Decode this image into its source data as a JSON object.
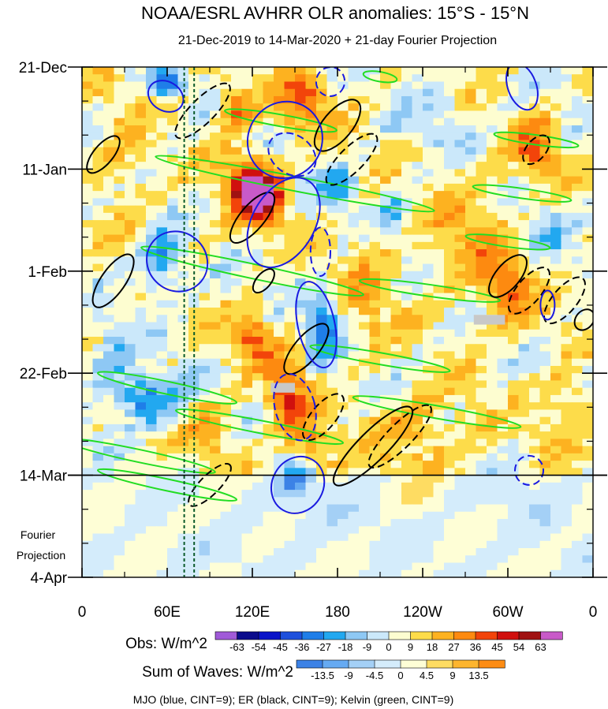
{
  "chart_data": {
    "type": "heatmap",
    "title": "NOAA/ESRL AVHRR OLR anomalies: 15°S - 15°N",
    "subtitle": "21-Dec-2019 to 14-Mar-2020 + 21-day Fourier Projection",
    "x_ticks": [
      {
        "lon": 0,
        "label": "0"
      },
      {
        "lon": 60,
        "label": "60E"
      },
      {
        "lon": 120,
        "label": "120E"
      },
      {
        "lon": 180,
        "label": "180"
      },
      {
        "lon": 240,
        "label": "120W"
      },
      {
        "lon": 300,
        "label": "60W"
      },
      {
        "lon": 360,
        "label": "0"
      }
    ],
    "xlim": [
      0,
      360
    ],
    "y_ticks": [
      {
        "day": 0,
        "label": "21-Dec"
      },
      {
        "day": 21,
        "label": "11-Jan"
      },
      {
        "day": 42,
        "label": "1-Feb"
      },
      {
        "day": 63,
        "label": "22-Feb"
      },
      {
        "day": 84,
        "label": "14-Mar"
      },
      {
        "day": 105,
        "label": "4-Apr"
      }
    ],
    "ylim_days": [
      0,
      105
    ],
    "projection_label": [
      "Fourier",
      "Projection"
    ],
    "projection_start_day": 84,
    "reference_lines_lon": [
      72,
      79
    ],
    "obs_colorbar": {
      "label": "Obs: W/m^2",
      "levels": [
        "-63",
        "-54",
        "-45",
        "-36",
        "-27",
        "-18",
        "-9",
        "0",
        "9",
        "18",
        "27",
        "36",
        "45",
        "54",
        "63"
      ],
      "colors": [
        "#a05ad8",
        "#0b0c8c",
        "#0a14c8",
        "#1e50dc",
        "#1f7ee8",
        "#22a8f0",
        "#8ec8f4",
        "#cbe8fa",
        "#fdfdd0",
        "#fddc4a",
        "#fdb220",
        "#fd8a10",
        "#f2440a",
        "#d0100e",
        "#a01212",
        "#c85ac8"
      ]
    },
    "waves_colorbar": {
      "label": "Sum of Waves: W/m^2",
      "levels": [
        "-13.5",
        "-9",
        "-4.5",
        "0",
        "4.5",
        "9",
        "13.5"
      ],
      "colors": [
        "#3c82e6",
        "#66aaf2",
        "#a4d0f6",
        "#d4ecfb",
        "#fefed6",
        "#fedc62",
        "#fdb52e",
        "#fd8c14"
      ]
    },
    "legend_note": "MJO (blue, CINT=9); ER (black, CINT=9); Kelvin (green, CINT=9)",
    "field_blobs": [
      {
        "lon": 128,
        "day": 27,
        "val": 55,
        "rlon": 14,
        "rday": 5
      },
      {
        "lon": 115,
        "day": 24,
        "val": 40,
        "rlon": 16,
        "rday": 6
      },
      {
        "lon": 108,
        "day": 8,
        "val": 30,
        "rlon": 12,
        "rday": 5
      },
      {
        "lon": 155,
        "day": 7,
        "val": 32,
        "rlon": 18,
        "rday": 6
      },
      {
        "lon": 320,
        "day": 17,
        "val": 32,
        "rlon": 16,
        "rday": 6
      },
      {
        "lon": 300,
        "day": 47,
        "val": 28,
        "rlon": 18,
        "rday": 7
      },
      {
        "lon": 145,
        "day": 68,
        "val": 40,
        "rlon": 14,
        "rday": 7
      },
      {
        "lon": 165,
        "day": 78,
        "val": 26,
        "rlon": 12,
        "rday": 5
      },
      {
        "lon": 120,
        "day": 56,
        "val": 30,
        "rlon": 16,
        "rday": 5
      },
      {
        "lon": 60,
        "day": 3,
        "val": -45,
        "rlon": 10,
        "rday": 3
      },
      {
        "lon": 55,
        "day": 40,
        "val": -35,
        "rlon": 14,
        "rday": 6
      },
      {
        "lon": 45,
        "day": 68,
        "val": -38,
        "rlon": 22,
        "rday": 5
      },
      {
        "lon": 170,
        "day": 53,
        "val": -36,
        "rlon": 12,
        "rday": 7
      },
      {
        "lon": 180,
        "day": 25,
        "val": -30,
        "rlon": 14,
        "rday": 4
      },
      {
        "lon": 150,
        "day": 85,
        "val": -40,
        "rlon": 10,
        "rday": 3
      },
      {
        "lon": 220,
        "day": 30,
        "val": -18,
        "rlon": 12,
        "rday": 5
      },
      {
        "lon": 250,
        "day": 10,
        "val": -12,
        "rlon": 22,
        "rday": 6
      },
      {
        "lon": 20,
        "day": 60,
        "val": -20,
        "rlon": 14,
        "rday": 6
      },
      {
        "lon": 270,
        "day": 35,
        "val": 18,
        "rlon": 30,
        "rday": 10
      },
      {
        "lon": 240,
        "day": 75,
        "val": 18,
        "rlon": 30,
        "rday": 8
      },
      {
        "lon": 200,
        "day": 45,
        "val": 14,
        "rlon": 20,
        "rday": 12
      },
      {
        "lon": 340,
        "day": 70,
        "val": 16,
        "rlon": 16,
        "rday": 8
      },
      {
        "lon": 30,
        "day": 20,
        "val": 14,
        "rlon": 18,
        "rday": 10
      },
      {
        "lon": 90,
        "day": 75,
        "val": 18,
        "rlon": 14,
        "rday": 6
      },
      {
        "lon": 330,
        "day": 35,
        "val": -14,
        "rlon": 14,
        "rday": 6
      },
      {
        "lon": 100,
        "day": 95,
        "val": 5,
        "rlon": 40,
        "rday": 4
      },
      {
        "lon": 150,
        "day": 92,
        "val": -10,
        "rlon": 40,
        "rday": 6
      },
      {
        "lon": 60,
        "day": 100,
        "val": -6,
        "rlon": 40,
        "rday": 4
      },
      {
        "lon": 300,
        "day": 92,
        "val": -4,
        "rlon": 40,
        "rday": 8
      },
      {
        "lon": 230,
        "day": 88,
        "val": 5,
        "rlon": 25,
        "rday": 3
      }
    ],
    "missing_patches": [
      {
        "lon0": 133,
        "lon1": 150,
        "day0": 65,
        "day1": 67
      },
      {
        "lon0": 276,
        "lon1": 298,
        "day0": 51,
        "day1": 53
      }
    ],
    "mjo_contours": [
      {
        "lon": 143,
        "day": 15,
        "rlon": 26,
        "rday": 8,
        "angle": 32,
        "dash": false
      },
      {
        "lon": 148,
        "day": 18,
        "rlon": 18,
        "rday": 4,
        "angle": 35,
        "dash": true
      },
      {
        "lon": 165,
        "day": 53,
        "rlon": 13,
        "rday": 9,
        "angle": -12,
        "dash": false
      },
      {
        "lon": 150,
        "day": 70,
        "rlon": 14,
        "rday": 7,
        "angle": -15,
        "dash": true
      },
      {
        "lon": 142,
        "day": 32,
        "rlon": 22,
        "rday": 10,
        "angle": 30,
        "dash": false
      },
      {
        "lon": 67,
        "day": 40,
        "rlon": 22,
        "rday": 6,
        "angle": 40,
        "dash": false
      },
      {
        "lon": 59,
        "day": 6,
        "rlon": 13,
        "rday": 3,
        "angle": 30,
        "dash": false
      },
      {
        "lon": 152,
        "day": 86,
        "rlon": 18,
        "rday": 6,
        "angle": 30,
        "dash": false
      },
      {
        "lon": 168,
        "day": 38,
        "rlon": 7,
        "rday": 5,
        "angle": 0,
        "dash": true
      },
      {
        "lon": 175,
        "day": 3,
        "rlon": 10,
        "rday": 3,
        "angle": 20,
        "dash": true
      },
      {
        "lon": 310,
        "day": 4,
        "rlon": 10,
        "rday": 5,
        "angle": -20,
        "dash": false
      },
      {
        "lon": 328,
        "day": 49,
        "rlon": 5,
        "rday": 3,
        "angle": 0,
        "dash": false
      },
      {
        "lon": 315,
        "day": 83,
        "rlon": 10,
        "rday": 3,
        "angle": 0,
        "dash": true
      }
    ],
    "er_contours": [
      {
        "lon": 180,
        "day": 12,
        "rlon": 22,
        "rday": 3,
        "angle": -50,
        "dash": false
      },
      {
        "lon": 85,
        "day": 9,
        "rlon": 26,
        "rday": 2.5,
        "angle": -45,
        "dash": true
      },
      {
        "lon": 190,
        "day": 19,
        "rlon": 24,
        "rday": 2.5,
        "angle": -45,
        "dash": true
      },
      {
        "lon": 15,
        "day": 18,
        "rlon": 16,
        "rday": 2,
        "angle": -50,
        "dash": false
      },
      {
        "lon": 22,
        "day": 44,
        "rlon": 22,
        "rday": 2.5,
        "angle": -55,
        "dash": false
      },
      {
        "lon": 120,
        "day": 31,
        "rlon": 22,
        "rday": 2.5,
        "angle": -50,
        "dash": false
      },
      {
        "lon": 158,
        "day": 58,
        "rlon": 22,
        "rday": 2.5,
        "angle": -50,
        "dash": false
      },
      {
        "lon": 205,
        "day": 78,
        "rlon": 38,
        "rday": 3,
        "angle": -45,
        "dash": false
      },
      {
        "lon": 224,
        "day": 76,
        "rlon": 30,
        "rday": 2.5,
        "angle": -45,
        "dash": true
      },
      {
        "lon": 170,
        "day": 72,
        "rlon": 20,
        "rday": 2.5,
        "angle": -50,
        "dash": true
      },
      {
        "lon": 90,
        "day": 86,
        "rlon": 20,
        "rday": 2,
        "angle": -45,
        "dash": true
      },
      {
        "lon": 300,
        "day": 43,
        "rlon": 18,
        "rday": 2.5,
        "angle": -50,
        "dash": false
      },
      {
        "lon": 315,
        "day": 46,
        "rlon": 20,
        "rday": 2.5,
        "angle": -50,
        "dash": true
      },
      {
        "lon": 340,
        "day": 48,
        "rlon": 20,
        "rday": 2.5,
        "angle": -50,
        "dash": true
      },
      {
        "lon": 320,
        "day": 17,
        "rlon": 12,
        "rday": 2,
        "angle": -50,
        "dash": true
      },
      {
        "lon": 354,
        "day": 52,
        "rlon": 8,
        "rday": 1.8,
        "angle": -50,
        "dash": false
      },
      {
        "lon": 128,
        "day": 44,
        "rlon": 10,
        "rday": 1.5,
        "angle": -50,
        "dash": false
      }
    ],
    "kelvin_contours": [
      {
        "lon": 210,
        "day": 2,
        "rlon": 12,
        "rday": 1,
        "angle": 10,
        "dash": false
      },
      {
        "lon": 140,
        "day": 11,
        "rlon": 40,
        "rday": 1.2,
        "angle": 10,
        "dash": false
      },
      {
        "lon": 150,
        "day": 24,
        "rlon": 100,
        "rday": 1.5,
        "angle": 11,
        "dash": false
      },
      {
        "lon": 120,
        "day": 42,
        "rlon": 80,
        "rday": 1.5,
        "angle": 12,
        "dash": false
      },
      {
        "lon": 245,
        "day": 46,
        "rlon": 50,
        "rday": 1.2,
        "angle": 8,
        "dash": false
      },
      {
        "lon": 60,
        "day": 66,
        "rlon": 50,
        "rday": 1.3,
        "angle": 12,
        "dash": false
      },
      {
        "lon": 125,
        "day": 74,
        "rlon": 60,
        "rday": 1.3,
        "angle": 11,
        "dash": false
      },
      {
        "lon": 250,
        "day": 71,
        "rlon": 60,
        "rday": 1.3,
        "angle": 10,
        "dash": false
      },
      {
        "lon": 40,
        "day": 80,
        "rlon": 55,
        "rday": 1.3,
        "angle": 12,
        "dash": false
      },
      {
        "lon": 310,
        "day": 26,
        "rlon": 35,
        "rday": 1,
        "angle": 8,
        "dash": false
      },
      {
        "lon": 300,
        "day": 36,
        "rlon": 30,
        "rday": 1,
        "angle": 8,
        "dash": false
      },
      {
        "lon": 320,
        "day": 15,
        "rlon": 30,
        "rday": 1,
        "angle": 8,
        "dash": false
      },
      {
        "lon": 60,
        "day": 86,
        "rlon": 50,
        "rday": 1.2,
        "angle": 12,
        "dash": false
      },
      {
        "lon": 210,
        "day": 60,
        "rlon": 50,
        "rday": 1.2,
        "angle": 10,
        "dash": false
      }
    ]
  }
}
